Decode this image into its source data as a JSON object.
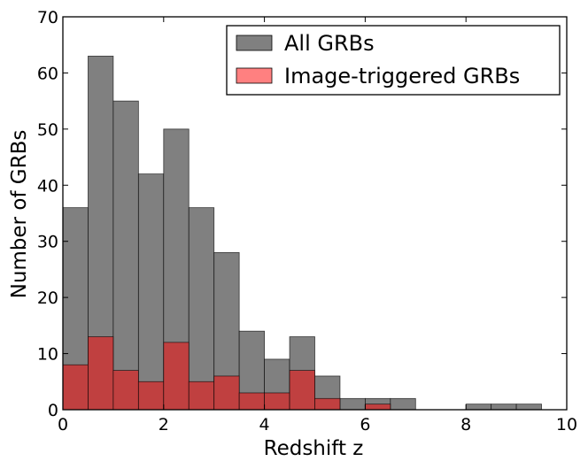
{
  "chart_data": {
    "type": "bar",
    "xlabel": "Redshift z",
    "ylabel": "Number of GRBs",
    "xlim": [
      0,
      10
    ],
    "ylim": [
      0,
      70
    ],
    "x_ticks": [
      "0",
      "2",
      "4",
      "6",
      "8",
      "10"
    ],
    "y_ticks": [
      "0",
      "10",
      "20",
      "30",
      "40",
      "50",
      "60",
      "70"
    ],
    "bin_width": 0.5,
    "bin_starts": [
      0,
      0.5,
      1.0,
      1.5,
      2.0,
      2.5,
      3.0,
      3.5,
      4.0,
      4.5,
      5.0,
      5.5,
      6.0,
      6.5,
      7.0,
      7.5,
      8.0,
      8.5,
      9.0,
      9.5
    ],
    "series": [
      {
        "name": "All GRBs",
        "color": "#808080",
        "values": [
          36,
          63,
          55,
          42,
          50,
          36,
          28,
          14,
          9,
          13,
          6,
          2,
          2,
          2,
          0,
          0,
          1,
          1,
          1,
          0
        ]
      },
      {
        "name": "Image-triggered GRBs",
        "color": "#ff8080",
        "overlap_color": "#c04040",
        "values": [
          8,
          13,
          7,
          5,
          12,
          5,
          6,
          3,
          3,
          7,
          2,
          0,
          1,
          0,
          0,
          0,
          0,
          0,
          0,
          0
        ]
      }
    ],
    "legend_position": "top-right",
    "grid": false
  }
}
